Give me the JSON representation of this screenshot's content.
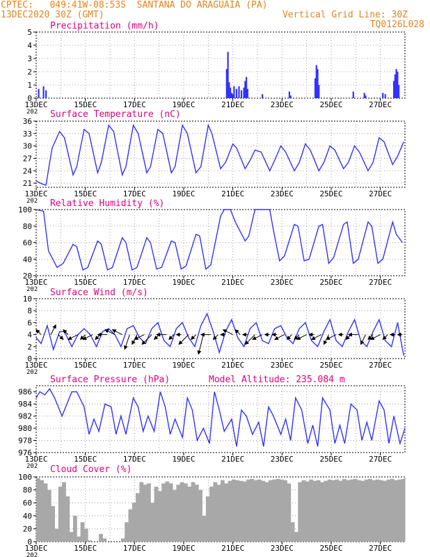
{
  "header": {
    "line1": "CPTEC:   049:41W-08:53S  SANTANA DO ARAGUAIA (PA)",
    "line2": "13DEC2020 30Z (GMT)",
    "grid_note": "Vertical Grid Line: 30Z",
    "run_id": "TQ0126L028"
  },
  "colors": {
    "header": "#e6821e",
    "title": "#e0007a",
    "series": "#3232ff",
    "cloud": "#a8a8a8"
  },
  "x_axis": {
    "start_day": 13,
    "end_day": 28,
    "tick_labels": [
      "13DEC",
      "15DEC",
      "17DEC",
      "19DEC",
      "21DEC",
      "23DEC",
      "25DEC",
      "27DEC"
    ],
    "tick_days": [
      13,
      15,
      17,
      19,
      21,
      23,
      25,
      27
    ],
    "year_stub": "202"
  },
  "chart_data": [
    {
      "type": "bar",
      "title": "Precipitation (mm/h)",
      "ylim": [
        0,
        5
      ],
      "yticks": [
        0,
        1,
        2,
        3,
        4,
        5
      ],
      "x": [
        13.1,
        13.3,
        13.4,
        20.75,
        20.8,
        20.85,
        20.9,
        20.95,
        21.0,
        21.05,
        21.15,
        21.25,
        21.35,
        21.45,
        21.5,
        21.55,
        21.6,
        22.2,
        23.3,
        23.35,
        24.35,
        24.4,
        24.45,
        24.5,
        25.9,
        26.35,
        26.4,
        27.1,
        27.2,
        27.55,
        27.6,
        27.65,
        27.7,
        27.75
      ],
      "values": [
        0.7,
        0.9,
        0.6,
        2.2,
        3.5,
        1.2,
        0.8,
        0.4,
        0.3,
        0.9,
        0.7,
        0.9,
        0.6,
        0.8,
        1.3,
        1.6,
        0.7,
        0.3,
        0.5,
        0.2,
        1.5,
        2.5,
        2.2,
        1.0,
        0.5,
        0.4,
        0.2,
        0.4,
        0.3,
        1.3,
        1.8,
        2.2,
        2.0,
        1.0
      ]
    },
    {
      "type": "line",
      "title": "Surface Temperature (nC)",
      "ylim": [
        20,
        36
      ],
      "yticks": [
        21,
        24,
        27,
        30,
        33,
        36
      ],
      "x": [
        13.0,
        13.25,
        13.4,
        13.55,
        13.65,
        13.95,
        14.15,
        14.5,
        14.65,
        14.95,
        15.15,
        15.5,
        15.65,
        15.95,
        16.15,
        16.5,
        16.65,
        16.95,
        17.15,
        17.5,
        17.65,
        17.95,
        18.15,
        18.5,
        18.65,
        18.95,
        19.15,
        19.5,
        19.7,
        20.0,
        20.15,
        20.5,
        20.7,
        21.0,
        21.15,
        21.5,
        21.7,
        21.9,
        22.15,
        22.5,
        22.7,
        22.95,
        23.15,
        23.5,
        23.7,
        23.95,
        24.15,
        24.5,
        24.7,
        24.95,
        25.15,
        25.5,
        25.7,
        25.95,
        26.15,
        26.5,
        26.7,
        26.95,
        27.15,
        27.5,
        27.7,
        27.95
      ],
      "values": [
        21.5,
        20.8,
        20.5,
        26,
        29.5,
        33.5,
        32,
        23,
        25,
        34,
        33,
        23.5,
        26,
        35,
        33.5,
        23,
        25,
        35,
        33,
        23.5,
        25,
        34,
        33,
        23.5,
        25,
        35,
        33,
        23.5,
        25,
        35,
        33,
        24.5,
        26,
        30.5,
        29.5,
        24.5,
        26.5,
        29,
        28.5,
        24,
        26.5,
        30,
        28.5,
        24,
        26,
        30.5,
        29,
        24,
        26,
        30,
        29,
        24.5,
        26,
        30,
        28.5,
        24,
        26,
        32,
        31,
        25.5,
        27.5,
        31
      ]
    },
    {
      "type": "line",
      "title": "Relative Humidity (%)",
      "ylim": [
        20,
        100
      ],
      "yticks": [
        20,
        40,
        60,
        80,
        100
      ],
      "x": [
        13.0,
        13.3,
        13.5,
        13.85,
        14.1,
        14.5,
        14.65,
        14.9,
        15.1,
        15.5,
        15.65,
        15.9,
        16.1,
        16.5,
        16.65,
        16.9,
        17.1,
        17.5,
        17.65,
        17.9,
        18.1,
        18.5,
        18.65,
        18.9,
        19.1,
        19.5,
        19.65,
        19.9,
        20.1,
        20.5,
        20.65,
        20.9,
        21.1,
        21.5,
        21.65,
        21.9,
        22.1,
        22.5,
        22.65,
        22.9,
        23.1,
        23.5,
        23.65,
        23.9,
        24.1,
        24.5,
        24.65,
        24.9,
        25.1,
        25.5,
        25.65,
        25.9,
        26.1,
        26.5,
        26.65,
        26.9,
        27.1,
        27.5,
        27.65,
        27.9
      ],
      "values": [
        100,
        98,
        50,
        30,
        35,
        58,
        55,
        27,
        30,
        62,
        58,
        27,
        30,
        66,
        60,
        27,
        30,
        66,
        60,
        28,
        30,
        62,
        60,
        28,
        32,
        70,
        68,
        28,
        33,
        92,
        100,
        100,
        85,
        62,
        68,
        100,
        100,
        100,
        75,
        38,
        44,
        82,
        80,
        38,
        40,
        80,
        82,
        35,
        42,
        82,
        85,
        35,
        40,
        85,
        80,
        35,
        40,
        85,
        70,
        60
      ]
    },
    {
      "type": "line",
      "title": "Surface Wind (m/s)",
      "ylim": [
        0,
        10
      ],
      "yticks": [
        0,
        2,
        4,
        6,
        8,
        10
      ],
      "x": [
        13.0,
        13.2,
        13.45,
        13.7,
        13.95,
        14.15,
        14.45,
        14.7,
        14.95,
        15.2,
        15.45,
        15.7,
        15.95,
        16.2,
        16.45,
        16.7,
        16.95,
        17.2,
        17.45,
        17.7,
        17.95,
        18.2,
        18.45,
        18.7,
        18.95,
        19.2,
        19.45,
        19.7,
        19.95,
        20.2,
        20.45,
        20.7,
        20.95,
        21.2,
        21.45,
        21.7,
        21.95,
        22.2,
        22.45,
        22.7,
        22.95,
        23.2,
        23.45,
        23.7,
        23.95,
        24.2,
        24.45,
        24.7,
        24.95,
        25.2,
        25.45,
        25.7,
        25.95,
        26.2,
        26.45,
        26.7,
        26.95,
        27.2,
        27.45,
        27.7,
        27.95
      ],
      "values": [
        3.5,
        2.5,
        5.5,
        1.5,
        4.5,
        4.5,
        2.0,
        4.0,
        5.0,
        4.0,
        2.0,
        4.5,
        5.0,
        4.0,
        2.0,
        5.0,
        5.5,
        3.5,
        2.5,
        5.0,
        6.0,
        3.0,
        2.0,
        5.0,
        6.0,
        3.5,
        2.0,
        5.5,
        7.5,
        4.5,
        1.0,
        4.5,
        6.5,
        3.5,
        2.0,
        5.0,
        6.0,
        3.0,
        2.5,
        5.0,
        5.5,
        3.5,
        2.5,
        5.0,
        6.0,
        3.0,
        2.0,
        4.5,
        6.5,
        3.0,
        2.0,
        4.5,
        6.5,
        3.0,
        2.0,
        4.5,
        6.5,
        3.0,
        2.0,
        6.0,
        0.5
      ],
      "arrows_x": [
        13.2,
        13.6,
        13.9,
        14.3,
        14.7,
        15.0,
        15.3,
        15.6,
        15.9,
        16.2,
        16.5,
        16.8,
        17.1,
        17.4,
        17.7,
        18.0,
        18.3,
        18.6,
        18.9,
        19.2,
        19.5,
        19.8,
        20.1,
        20.4,
        20.7,
        21.0,
        21.3,
        21.6,
        21.9,
        22.2,
        22.5,
        22.8,
        23.1,
        23.4,
        23.7,
        24.0,
        24.3,
        24.6,
        24.9,
        25.2,
        25.5,
        25.8,
        26.1,
        26.4,
        26.7,
        27.0,
        27.3,
        27.6,
        27.9
      ],
      "arrows_u": [
        -1,
        1,
        1,
        -1,
        -2,
        -1,
        -2,
        -1,
        -2,
        -2,
        -2,
        -1,
        -1,
        -2,
        -2,
        -1,
        -2,
        -1,
        -1,
        -2,
        -1,
        -1,
        -2,
        -1,
        -1,
        -2,
        -1,
        -1,
        -2,
        -2,
        -1,
        -1,
        -2,
        -1,
        -1,
        -2,
        -1,
        -2,
        -1,
        -2,
        -1,
        -1,
        -2,
        -1,
        -1,
        -2,
        -1,
        -1,
        -1
      ],
      "arrows_v": [
        1,
        2,
        -1,
        1,
        -1,
        -1,
        -1,
        -1,
        0,
        1,
        1,
        -3,
        -2,
        -1,
        -2,
        -1,
        0,
        -1,
        0,
        -2,
        -1,
        -4,
        0,
        -1,
        0,
        1,
        1,
        0,
        -2,
        -1,
        0,
        0,
        -1,
        -1,
        -1,
        -1,
        0,
        -1,
        -2,
        -1,
        0,
        -1,
        0,
        -2,
        -1,
        -1,
        -1,
        0,
        0
      ]
    },
    {
      "type": "line",
      "title": "Surface Pressure (hPa)",
      "ylim": [
        976,
        987
      ],
      "yticks": [
        976,
        978,
        980,
        982,
        984,
        986
      ],
      "x": [
        13.0,
        13.15,
        13.35,
        13.55,
        13.75,
        14.05,
        14.25,
        14.45,
        14.65,
        14.95,
        15.15,
        15.35,
        15.55,
        15.8,
        16.05,
        16.25,
        16.45,
        16.65,
        16.95,
        17.15,
        17.35,
        17.55,
        17.8,
        18.05,
        18.25,
        18.45,
        18.65,
        18.95,
        19.15,
        19.35,
        19.55,
        19.8,
        20.05,
        20.25,
        20.45,
        20.65,
        20.95,
        21.15,
        21.35,
        21.55,
        21.8,
        22.05,
        22.25,
        22.45,
        22.65,
        22.95,
        23.15,
        23.35,
        23.55,
        23.8,
        24.05,
        24.25,
        24.45,
        24.65,
        24.95,
        25.15,
        25.35,
        25.55,
        25.8,
        26.05,
        26.25,
        26.45,
        26.65,
        26.95,
        27.15,
        27.35,
        27.55,
        27.8,
        28.0
      ],
      "values": [
        985,
        986,
        985.5,
        986.5,
        985,
        982,
        984,
        986,
        986,
        983.5,
        979,
        981.5,
        979.5,
        984,
        983.5,
        979,
        982,
        979,
        985,
        983.5,
        979.5,
        982,
        979.5,
        986,
        983.5,
        979,
        981.5,
        978.5,
        985,
        983,
        978,
        980,
        977.5,
        986,
        983,
        979.5,
        981.5,
        977,
        983,
        982,
        979,
        981,
        977,
        983.5,
        982,
        979,
        981.5,
        978,
        985,
        983,
        977.5,
        980.5,
        977,
        985,
        983,
        977.5,
        980.5,
        977.5,
        984,
        983,
        978,
        981,
        978,
        984.5,
        983,
        977.5,
        982,
        977.5,
        980
      ]
    },
    {
      "type": "bar",
      "title": "Cloud Cover (%)",
      "ylim": [
        0,
        100
      ],
      "yticks": [
        0,
        20,
        40,
        60,
        80,
        100
      ],
      "x": [
        13.0,
        13.15,
        13.3,
        13.45,
        13.6,
        13.75,
        13.9,
        14.05,
        14.2,
        14.35,
        14.5,
        14.65,
        14.8,
        14.95,
        15.1,
        15.25,
        15.4,
        15.55,
        15.7,
        15.85,
        16.0,
        16.15,
        16.3,
        16.45,
        16.6,
        16.75,
        16.9,
        17.05,
        17.2,
        17.35,
        17.5,
        17.65,
        17.8,
        17.95,
        18.1,
        18.25,
        18.4,
        18.55,
        18.7,
        18.85,
        19.0,
        19.15,
        19.3,
        19.45,
        19.6,
        19.75,
        19.9,
        20.05,
        20.2,
        20.35,
        20.5,
        20.65,
        20.8,
        20.95,
        21.1,
        21.25,
        21.4,
        21.55,
        21.7,
        21.85,
        22.0,
        22.15,
        22.3,
        22.45,
        22.6,
        22.75,
        22.9,
        23.05,
        23.2,
        23.35,
        23.5,
        23.65,
        23.8,
        23.95,
        24.1,
        24.25,
        24.4,
        24.55,
        24.7,
        24.85,
        25.0,
        25.15,
        25.3,
        25.45,
        25.6,
        25.75,
        25.9,
        26.05,
        26.2,
        26.35,
        26.5,
        26.65,
        26.8,
        26.95,
        27.1,
        27.25,
        27.4,
        27.55,
        27.7,
        27.85
      ],
      "values": [
        98,
        95,
        90,
        80,
        55,
        20,
        85,
        92,
        70,
        15,
        40,
        8,
        30,
        20,
        2,
        0,
        0,
        12,
        5,
        0,
        0,
        0,
        0,
        5,
        30,
        50,
        60,
        75,
        92,
        88,
        90,
        60,
        85,
        78,
        90,
        93,
        90,
        80,
        88,
        92,
        90,
        85,
        92,
        88,
        80,
        40,
        70,
        85,
        92,
        88,
        95,
        90,
        94,
        96,
        95,
        94,
        93,
        96,
        97,
        95,
        96,
        94,
        92,
        95,
        96,
        97,
        96,
        95,
        90,
        30,
        15,
        92,
        95,
        93,
        96,
        94,
        95,
        92,
        94,
        96,
        95,
        96,
        94,
        97,
        95,
        96,
        97,
        95,
        94,
        96,
        97,
        95,
        96,
        95,
        94,
        96,
        97,
        95,
        96,
        97
      ]
    }
  ],
  "annotations": {
    "model_altitude": "Model Altitude: 235.084 m"
  }
}
